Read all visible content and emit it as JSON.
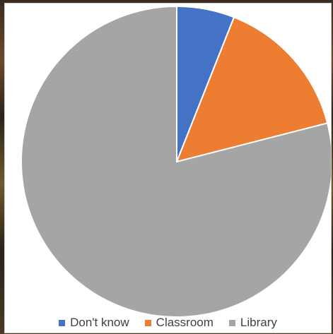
{
  "chart_data": {
    "type": "pie",
    "title": "",
    "categories": [
      "Don't know",
      "Classroom",
      "Library"
    ],
    "values": [
      6,
      15,
      79
    ],
    "colors": [
      "#4472c4",
      "#ed7d31",
      "#a5a5a5"
    ],
    "legend_position": "bottom",
    "start_angle_deg": 0,
    "direction": "clockwise"
  }
}
